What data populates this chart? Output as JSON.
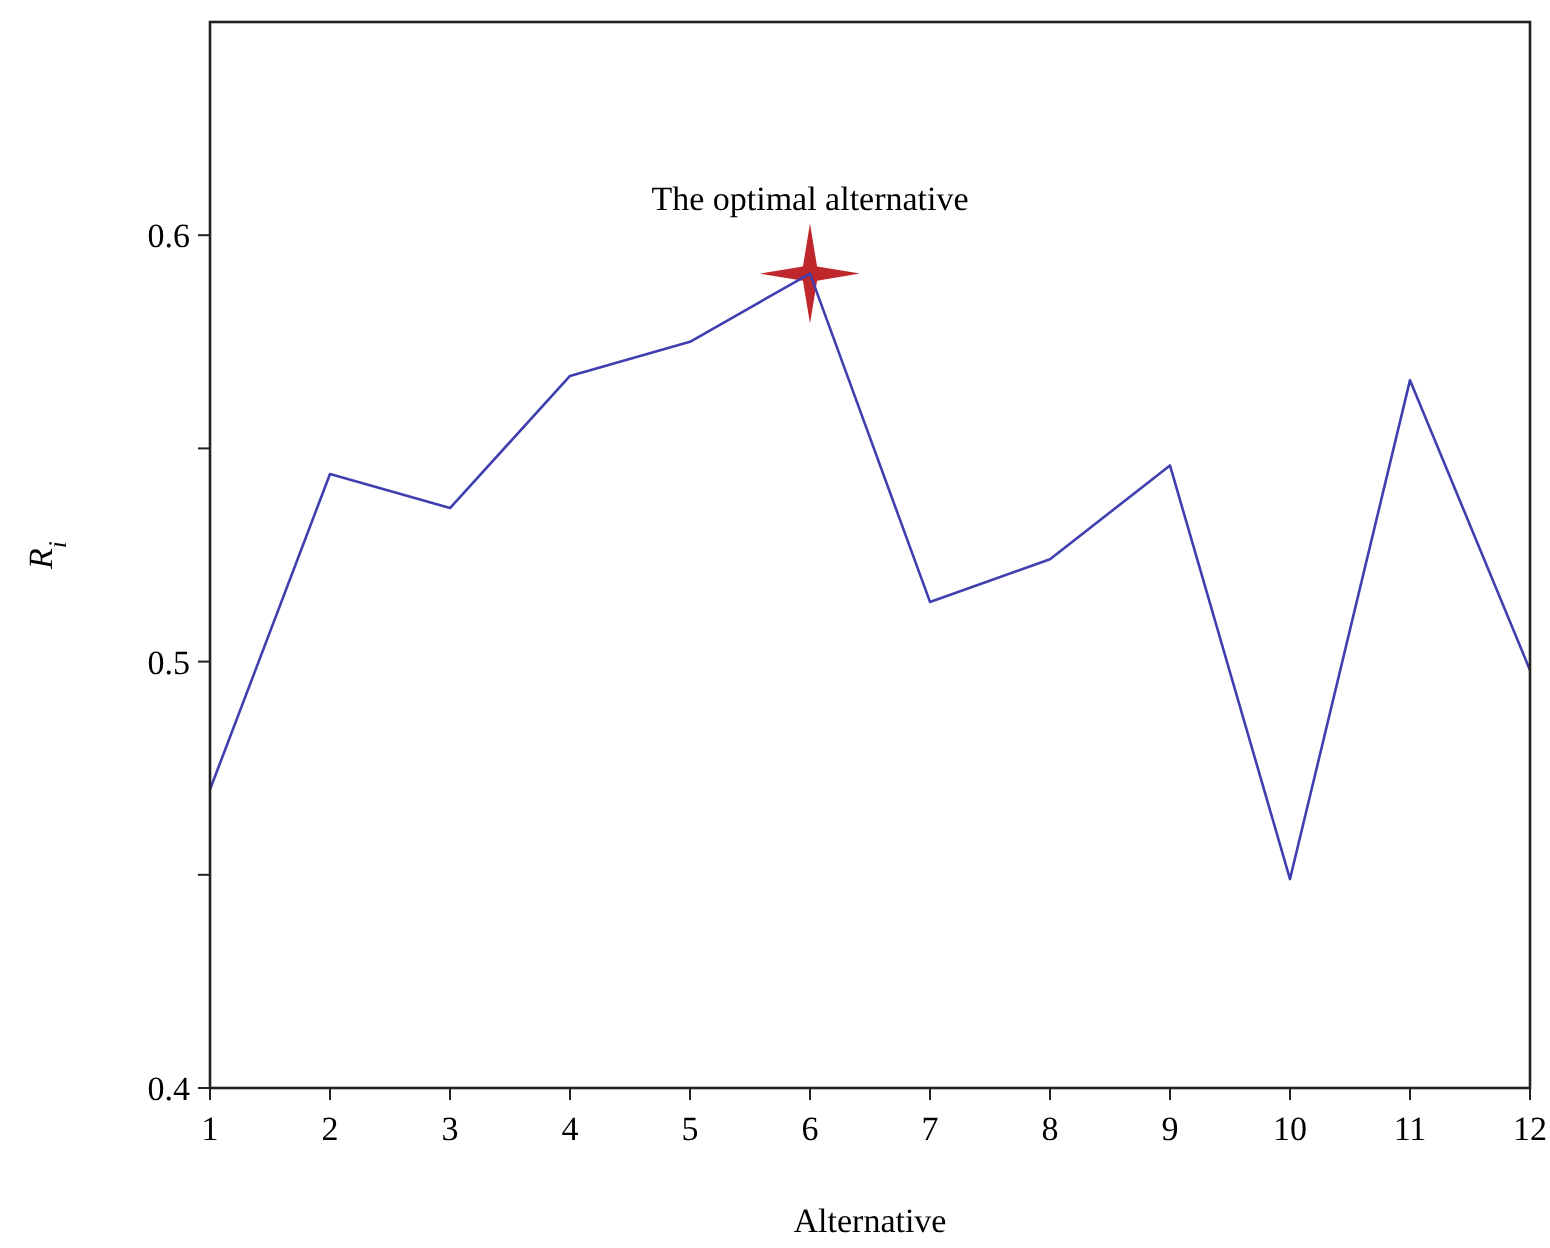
{
  "chart_data": {
    "type": "line",
    "xlabel": "Alternative",
    "ylabel": "R$_{i}$",
    "x": [
      1,
      2,
      3,
      4,
      5,
      6,
      7,
      8,
      9,
      10,
      11,
      12
    ],
    "xlim": [
      1,
      12
    ],
    "xticks": [
      1,
      2,
      3,
      4,
      5,
      6,
      7,
      8,
      9,
      10,
      11,
      12
    ],
    "ylim": [
      0.4,
      0.65
    ],
    "yticks": [
      0.4,
      {
        "value": 0.45,
        "label": null
      },
      0.5,
      {
        "value": 0.55,
        "label": null
      },
      0.6
    ],
    "series": [
      {
        "type": "line",
        "color": "#3f3fb0",
        "values": [
          0.47,
          0.544,
          0.536,
          0.567,
          0.575,
          0.591,
          0.514,
          0.524,
          0.546,
          0.449,
          0.566,
          0.498
        ]
      },
      {
        "type": "scatter",
        "color": "#c0272d",
        "marker": "star",
        "x": [
          6
        ],
        "values": [
          0.591
        ]
      }
    ],
    "annotations": [
      {
        "text": "The optimal alternative",
        "x": 6,
        "y": 0.591
      }
    ]
  }
}
